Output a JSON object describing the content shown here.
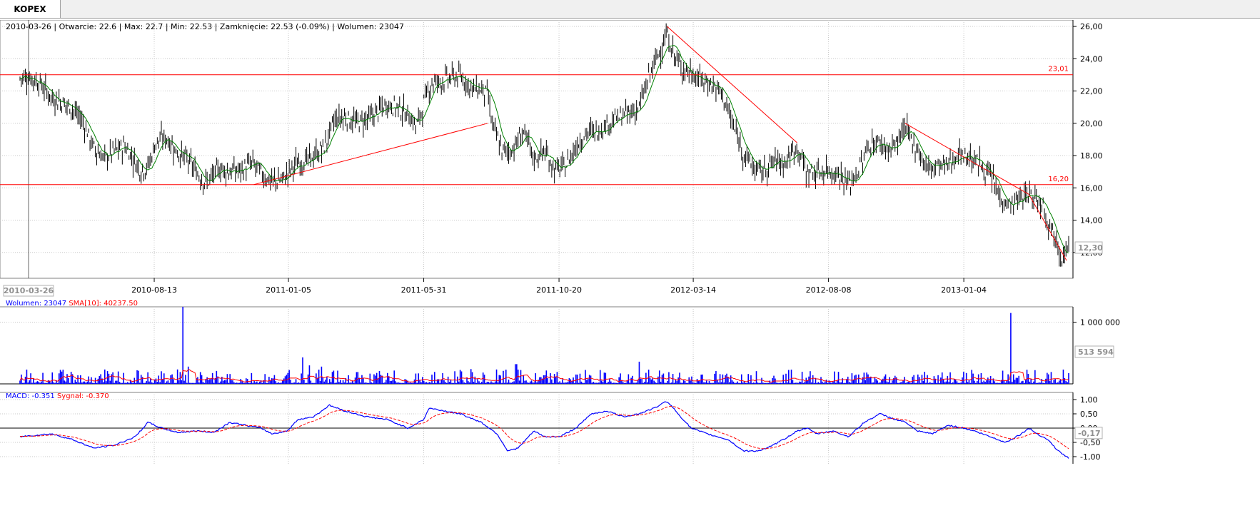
{
  "tab": {
    "label": "KOPEX"
  },
  "info_line": "2010-03-26 | Otwarcie: 22.6 | Max: 22.7 | Min: 22.53 | Zamknięcie: 22.53 (-0.09%)  | Wolumen: 23047",
  "colors": {
    "price_bar": "#000000",
    "sma": "#008000",
    "hline": "#ff0000",
    "volume": "#0000ff",
    "vol_sma": "#ff0000",
    "macd": "#0000ff",
    "signal": "#ff0000",
    "grid": "#c8c8c8"
  },
  "chart_data": [
    {
      "type": "ohlc",
      "ylim": [
        10.4,
        26.4
      ],
      "y_ticks": [
        "26,00",
        "24,00",
        "22,00",
        "20,00",
        "18,00",
        "16,00",
        "14,00",
        "12,00"
      ],
      "y_tick_values": [
        26,
        24,
        22,
        20,
        18,
        16,
        14,
        12
      ],
      "x_ticks": [
        "2010-08-13",
        "2011-01-05",
        "2011-05-31",
        "2011-10-20",
        "2012-03-14",
        "2012-08-08",
        "2013-01-04"
      ],
      "x_tick_index": [
        0.128,
        0.256,
        0.385,
        0.514,
        0.642,
        0.771,
        0.9
      ],
      "cursor_date": "2010-03-26",
      "last_value_label": "12,30",
      "last_value": 12.3,
      "horizontal_lines": [
        {
          "value": 23.01,
          "label": "23,01"
        },
        {
          "value": 16.2,
          "label": "16,20"
        }
      ],
      "trendlines": [
        {
          "from": [
            0.223,
            16.2
          ],
          "to": [
            0.446,
            20.0
          ]
        },
        {
          "from": [
            0.617,
            26.0
          ],
          "to": [
            0.741,
            18.8
          ]
        },
        {
          "from": [
            0.844,
            20.0
          ],
          "to": [
            0.962,
            15.6
          ]
        },
        {
          "from": [
            0.962,
            15.6
          ],
          "to": [
            0.998,
            11.5
          ]
        }
      ],
      "price_keypoints": [
        [
          0,
          22.8
        ],
        [
          0.006,
          22.9
        ],
        [
          0.012,
          22.8
        ],
        [
          0.02,
          22.4
        ],
        [
          0.03,
          21.6
        ],
        [
          0.04,
          21.3
        ],
        [
          0.05,
          20.9
        ],
        [
          0.06,
          20.1
        ],
        [
          0.07,
          18.5
        ],
        [
          0.08,
          17.8
        ],
        [
          0.09,
          18.3
        ],
        [
          0.1,
          18.6
        ],
        [
          0.108,
          17.8
        ],
        [
          0.115,
          17.1
        ],
        [
          0.122,
          17.3
        ],
        [
          0.13,
          18.9
        ],
        [
          0.14,
          19.1
        ],
        [
          0.15,
          18.2
        ],
        [
          0.16,
          17.7
        ],
        [
          0.17,
          16.8
        ],
        [
          0.178,
          16.3
        ],
        [
          0.19,
          17.2
        ],
        [
          0.2,
          17.0
        ],
        [
          0.21,
          17.1
        ],
        [
          0.222,
          17.5
        ],
        [
          0.233,
          16.7
        ],
        [
          0.24,
          16.4
        ],
        [
          0.25,
          16.5
        ],
        [
          0.263,
          17.5
        ],
        [
          0.275,
          17.7
        ],
        [
          0.29,
          18.5
        ],
        [
          0.3,
          20.2
        ],
        [
          0.31,
          20.4
        ],
        [
          0.32,
          20.0
        ],
        [
          0.335,
          20.4
        ],
        [
          0.35,
          21.2
        ],
        [
          0.36,
          21.0
        ],
        [
          0.372,
          20.4
        ],
        [
          0.378,
          19.8
        ],
        [
          0.385,
          21.2
        ],
        [
          0.392,
          22.5
        ],
        [
          0.4,
          22.6
        ],
        [
          0.41,
          22.8
        ],
        [
          0.418,
          22.9
        ],
        [
          0.425,
          22.6
        ],
        [
          0.432,
          22.1
        ],
        [
          0.44,
          22.1
        ],
        [
          0.446,
          21.8
        ],
        [
          0.45,
          20.0
        ],
        [
          0.46,
          18.2
        ],
        [
          0.47,
          18.4
        ],
        [
          0.48,
          19.5
        ],
        [
          0.49,
          17.8
        ],
        [
          0.5,
          18.3
        ],
        [
          0.51,
          17.1
        ],
        [
          0.52,
          17.3
        ],
        [
          0.532,
          18.8
        ],
        [
          0.54,
          19.4
        ],
        [
          0.55,
          19.5
        ],
        [
          0.56,
          20.0
        ],
        [
          0.57,
          20.3
        ],
        [
          0.58,
          20.6
        ],
        [
          0.59,
          20.9
        ],
        [
          0.6,
          22.9
        ],
        [
          0.61,
          24.5
        ],
        [
          0.617,
          25.5
        ],
        [
          0.623,
          24.3
        ],
        [
          0.63,
          23.5
        ],
        [
          0.64,
          23.1
        ],
        [
          0.65,
          22.7
        ],
        [
          0.66,
          22.4
        ],
        [
          0.67,
          21.8
        ],
        [
          0.68,
          19.8
        ],
        [
          0.69,
          18.2
        ],
        [
          0.7,
          17.2
        ],
        [
          0.708,
          17.0
        ],
        [
          0.72,
          17.7
        ],
        [
          0.73,
          17.6
        ],
        [
          0.741,
          18.6
        ],
        [
          0.75,
          17.0
        ],
        [
          0.76,
          16.9
        ],
        [
          0.77,
          17.1
        ],
        [
          0.78,
          16.9
        ],
        [
          0.79,
          16.2
        ],
        [
          0.8,
          17.1
        ],
        [
          0.81,
          18.7
        ],
        [
          0.82,
          18.8
        ],
        [
          0.83,
          18.3
        ],
        [
          0.844,
          19.6
        ],
        [
          0.855,
          18.5
        ],
        [
          0.865,
          17.2
        ],
        [
          0.875,
          17.4
        ],
        [
          0.885,
          17.4
        ],
        [
          0.895,
          18.2
        ],
        [
          0.905,
          17.9
        ],
        [
          0.915,
          17.5
        ],
        [
          0.925,
          16.7
        ],
        [
          0.935,
          15.4
        ],
        [
          0.945,
          14.9
        ],
        [
          0.955,
          15.4
        ],
        [
          0.962,
          15.6
        ],
        [
          0.968,
          15.4
        ],
        [
          0.975,
          15.1
        ],
        [
          0.98,
          14.0
        ],
        [
          0.987,
          13.1
        ],
        [
          0.993,
          11.8
        ],
        [
          1.0,
          12.3
        ]
      ]
    },
    {
      "type": "bar",
      "legend": [
        {
          "name": "Wolumen: 23047",
          "color": "#0000ff"
        },
        {
          "name": "SMA[10]: 40237.50",
          "color": "#ff0000"
        }
      ],
      "ylim": [
        0,
        1250000
      ],
      "y_ticks": [
        "1 000 000"
      ],
      "y_tick_values": [
        1000000
      ],
      "last_value_label": "513 594",
      "last_value": 513594,
      "spikes": [
        [
          0.155,
          1250000
        ],
        [
          0.16,
          280000
        ],
        [
          0.187,
          210000
        ],
        [
          0.198,
          160000
        ],
        [
          0.2,
          160000
        ],
        [
          0.27,
          430000
        ],
        [
          0.276,
          300000
        ],
        [
          0.287,
          280000
        ],
        [
          0.055,
          140000
        ],
        [
          0.43,
          240000
        ],
        [
          0.473,
          320000
        ],
        [
          0.5,
          140000
        ],
        [
          0.59,
          360000
        ],
        [
          0.65,
          150000
        ],
        [
          0.695,
          160000
        ],
        [
          0.945,
          1150000
        ],
        [
          0.953,
          130000
        ],
        [
          0.38,
          170000
        ],
        [
          0.81,
          110000
        ]
      ]
    },
    {
      "type": "line",
      "legend": [
        {
          "name": "MACD: -0.351",
          "color": "#0000ff"
        },
        {
          "name": "Sygnał: -0.370",
          "color": "#ff0000"
        }
      ],
      "ylim": [
        -1.25,
        1.25
      ],
      "y_ticks": [
        "1,00",
        "0,50",
        "0,00",
        "-0,50",
        "-1,00"
      ],
      "y_tick_values": [
        1,
        0.5,
        0,
        -0.5,
        -1
      ],
      "zero_line": 0,
      "last_value_label": "-0,17",
      "last_value": -0.17,
      "macd_keypoints": [
        [
          0,
          -0.3
        ],
        [
          0.03,
          -0.2
        ],
        [
          0.05,
          -0.4
        ],
        [
          0.07,
          -0.7
        ],
        [
          0.09,
          -0.6
        ],
        [
          0.11,
          -0.3
        ],
        [
          0.122,
          0.2
        ],
        [
          0.135,
          0.0
        ],
        [
          0.15,
          -0.15
        ],
        [
          0.17,
          -0.1
        ],
        [
          0.185,
          -0.15
        ],
        [
          0.2,
          0.2
        ],
        [
          0.215,
          0.1
        ],
        [
          0.23,
          0.0
        ],
        [
          0.24,
          -0.2
        ],
        [
          0.255,
          -0.1
        ],
        [
          0.265,
          0.3
        ],
        [
          0.28,
          0.4
        ],
        [
          0.295,
          0.8
        ],
        [
          0.31,
          0.6
        ],
        [
          0.33,
          0.4
        ],
        [
          0.35,
          0.3
        ],
        [
          0.37,
          0.0
        ],
        [
          0.385,
          0.3
        ],
        [
          0.39,
          0.7
        ],
        [
          0.405,
          0.6
        ],
        [
          0.42,
          0.5
        ],
        [
          0.44,
          0.2
        ],
        [
          0.455,
          -0.2
        ],
        [
          0.465,
          -0.8
        ],
        [
          0.475,
          -0.7
        ],
        [
          0.49,
          -0.1
        ],
        [
          0.5,
          -0.3
        ],
        [
          0.515,
          -0.3
        ],
        [
          0.53,
          0.0
        ],
        [
          0.545,
          0.5
        ],
        [
          0.56,
          0.6
        ],
        [
          0.575,
          0.4
        ],
        [
          0.59,
          0.5
        ],
        [
          0.605,
          0.7
        ],
        [
          0.617,
          0.95
        ],
        [
          0.63,
          0.4
        ],
        [
          0.64,
          0.0
        ],
        [
          0.655,
          -0.2
        ],
        [
          0.675,
          -0.4
        ],
        [
          0.69,
          -0.8
        ],
        [
          0.703,
          -0.8
        ],
        [
          0.713,
          -0.7
        ],
        [
          0.728,
          -0.4
        ],
        [
          0.741,
          -0.1
        ],
        [
          0.75,
          0.0
        ],
        [
          0.76,
          -0.2
        ],
        [
          0.775,
          -0.1
        ],
        [
          0.79,
          -0.3
        ],
        [
          0.805,
          0.2
        ],
        [
          0.82,
          0.5
        ],
        [
          0.835,
          0.3
        ],
        [
          0.845,
          0.2
        ],
        [
          0.855,
          -0.1
        ],
        [
          0.87,
          -0.2
        ],
        [
          0.885,
          0.1
        ],
        [
          0.9,
          0.0
        ],
        [
          0.91,
          -0.1
        ],
        [
          0.925,
          -0.3
        ],
        [
          0.94,
          -0.5
        ],
        [
          0.955,
          -0.2
        ],
        [
          0.962,
          0.0
        ],
        [
          0.97,
          -0.2
        ],
        [
          0.98,
          -0.4
        ],
        [
          0.99,
          -0.8
        ],
        [
          1.0,
          -1.05
        ]
      ]
    }
  ]
}
